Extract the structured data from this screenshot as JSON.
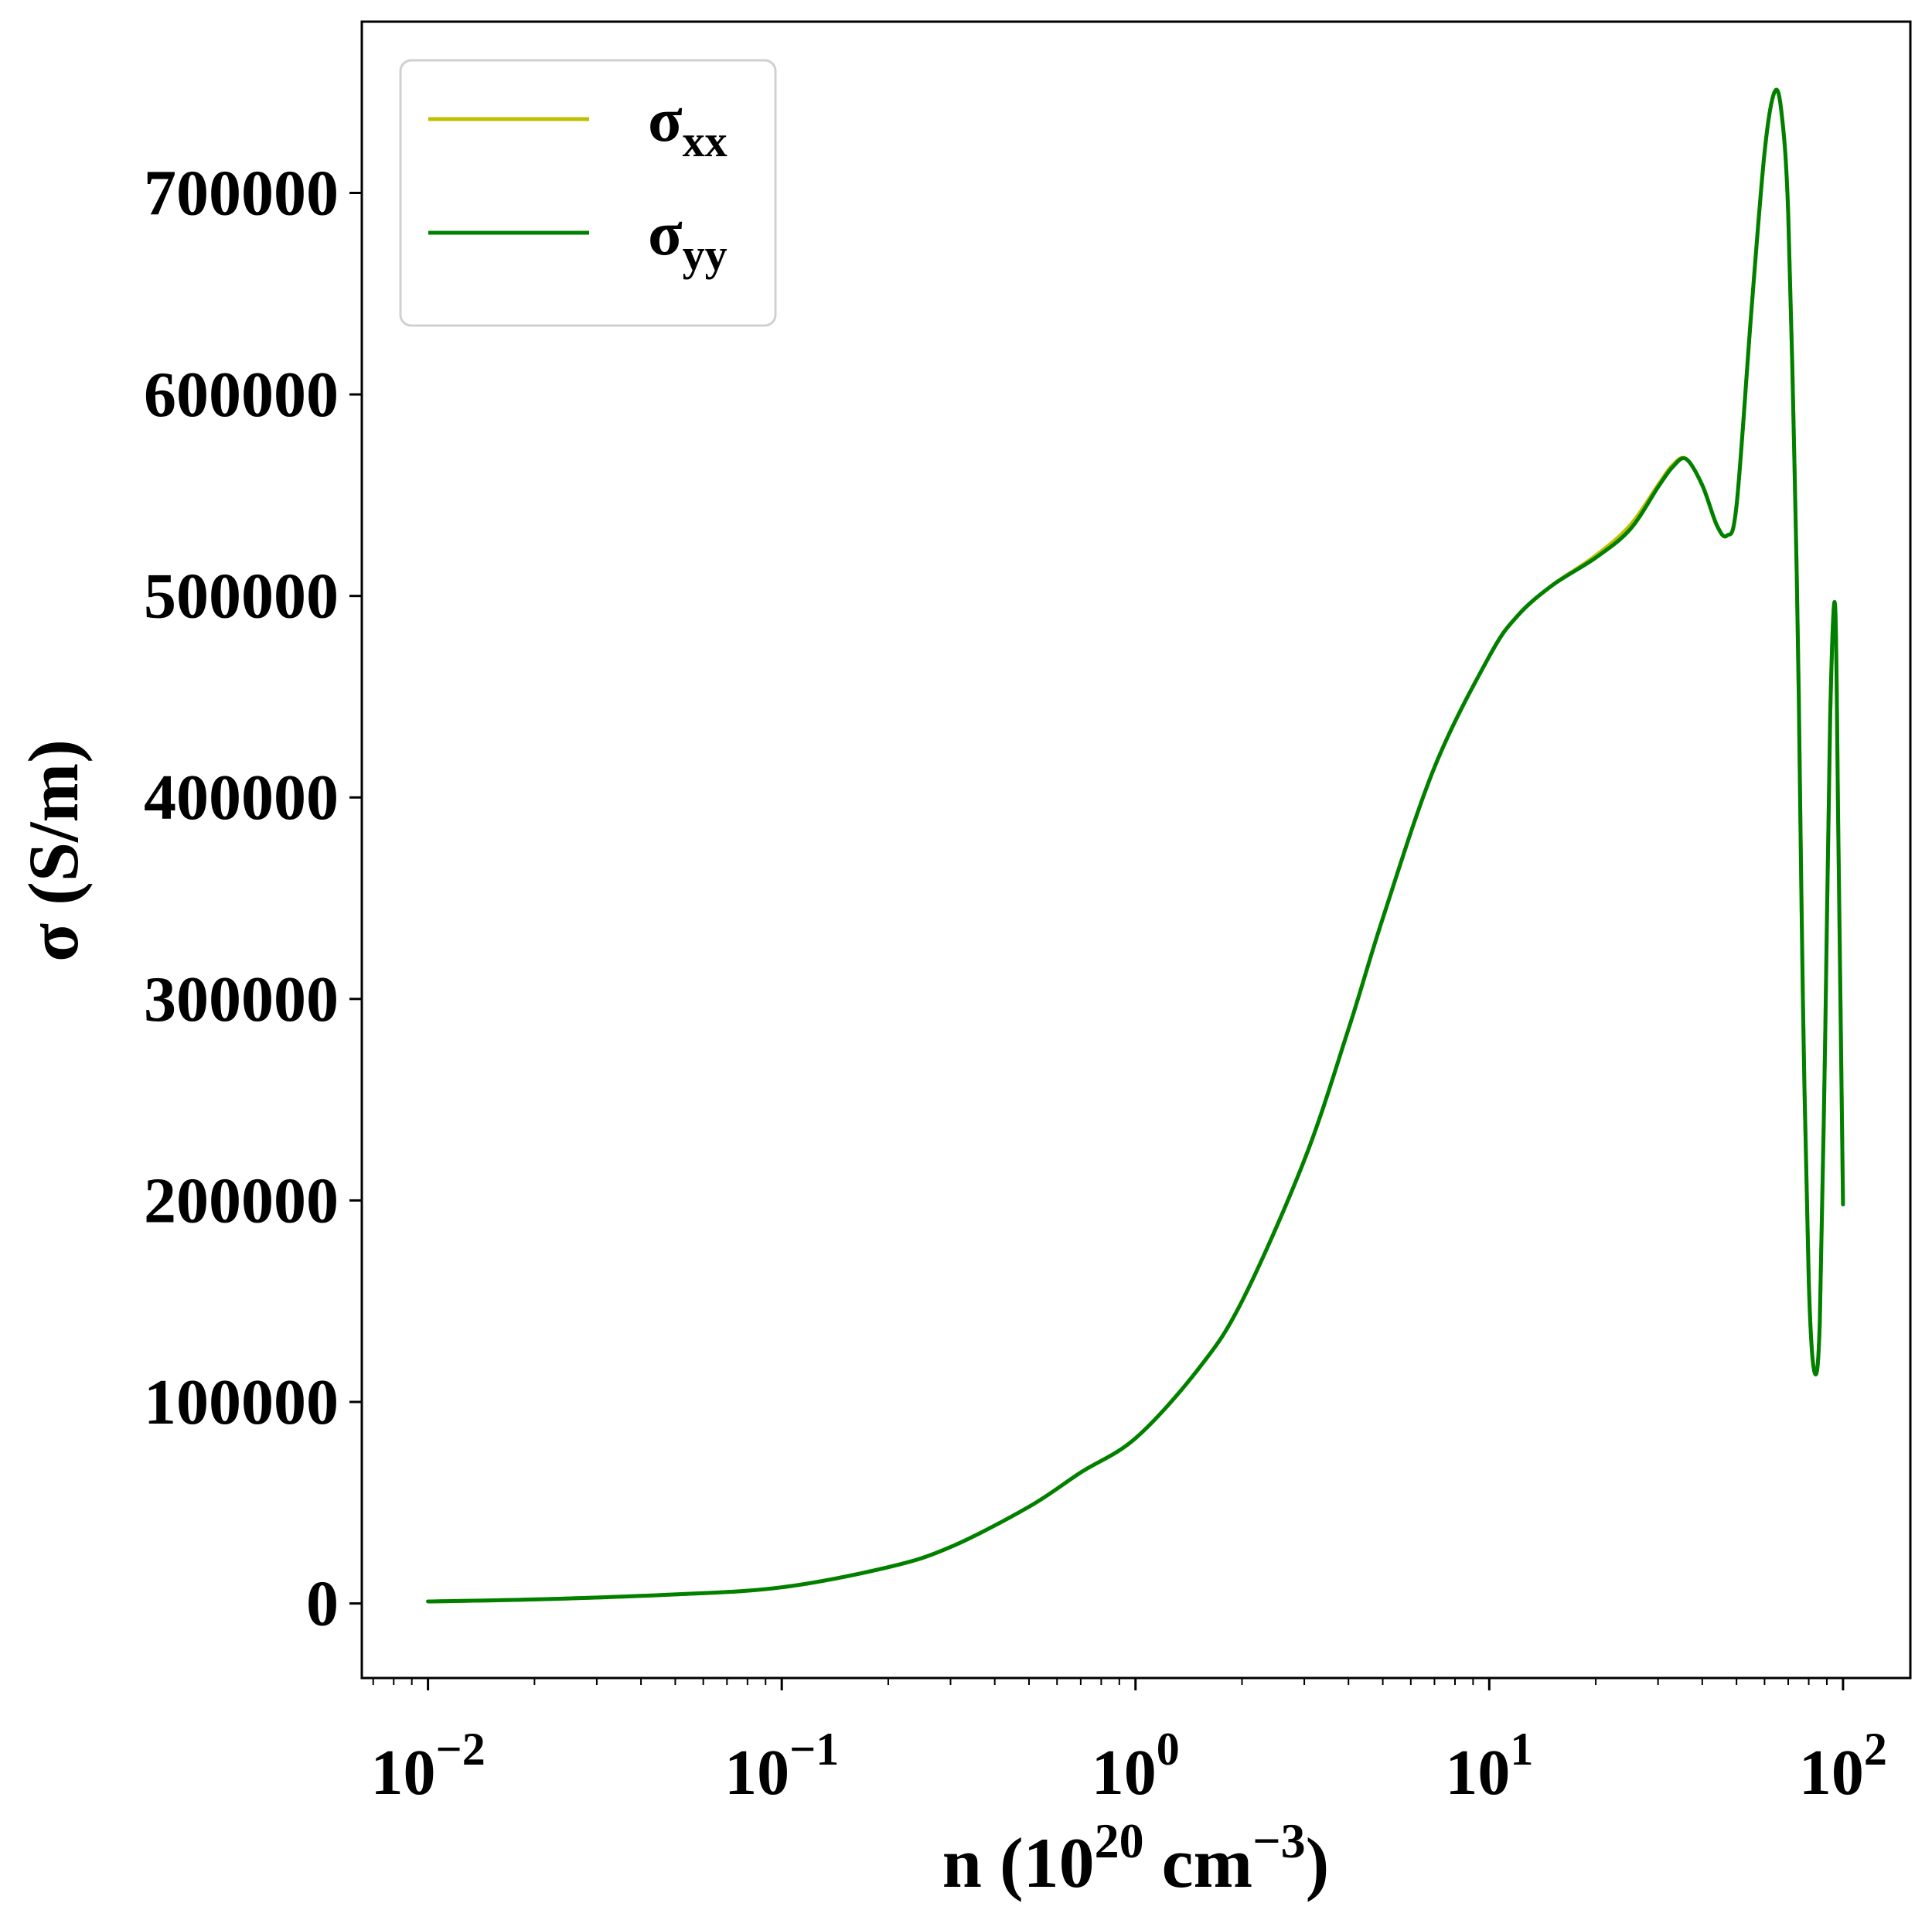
{
  "chart_data": {
    "type": "line",
    "xscale": "log",
    "xlim": [
      0.0065,
      155
    ],
    "ylim": [
      -37000,
      785000
    ],
    "grid": false,
    "legend_position": "top-left",
    "xlabel": "n (10^20 cm^-3)",
    "xlabel_parts": {
      "main": "n (10",
      "sup1": "20",
      "mid": " cm",
      "sup2": "−3",
      "end": ")"
    },
    "ylabel": "σ (S/m)",
    "x_ticks": [
      {
        "value": 0.01,
        "base": "10",
        "exp": "−2"
      },
      {
        "value": 0.1,
        "base": "10",
        "exp": "−1"
      },
      {
        "value": 1,
        "base": "10",
        "exp": "0"
      },
      {
        "value": 10,
        "base": "10",
        "exp": "1"
      },
      {
        "value": 100,
        "base": "10",
        "exp": "2"
      }
    ],
    "y_ticks": [
      {
        "value": 0,
        "label": "0"
      },
      {
        "value": 100000,
        "label": "100000"
      },
      {
        "value": 200000,
        "label": "200000"
      },
      {
        "value": 300000,
        "label": "300000"
      },
      {
        "value": 400000,
        "label": "400000"
      },
      {
        "value": 500000,
        "label": "500000"
      },
      {
        "value": 600000,
        "label": "600000"
      },
      {
        "value": 700000,
        "label": "700000"
      }
    ],
    "series": [
      {
        "name": "σxx",
        "name_parts": {
          "main": "σ",
          "sub": "xx"
        },
        "color": "#bfbf00",
        "x": [
          0.01,
          0.02,
          0.05,
          0.1,
          0.2,
          0.3,
          0.5,
          0.7,
          1.0,
          1.5,
          2.0,
          3.0,
          4.0,
          5.0,
          7.0,
          10.0,
          12.0,
          15.0,
          20.0,
          25.0,
          30.0,
          33.0,
          36.0,
          40.0,
          44.0,
          47.0,
          50.0,
          55.0,
          60.0,
          64.0,
          67.0,
          70.0,
          73.0,
          75.0,
          77.0,
          80.0,
          83.0,
          86.0,
          89.0,
          92.0,
          95.0,
          97.0,
          100.0
        ],
        "y": [
          1000,
          2000,
          4500,
          8000,
          18000,
          28000,
          48000,
          65000,
          82000,
          116000,
          150000,
          220000,
          285000,
          340000,
          415000,
          470000,
          490000,
          505000,
          520000,
          535000,
          555000,
          565000,
          568000,
          555000,
          535000,
          530000,
          545000,
          640000,
          720000,
          750000,
          740000,
          690000,
          560000,
          450000,
          300000,
          160000,
          115000,
          140000,
          280000,
          440000,
          495000,
          380000,
          198000
        ]
      },
      {
        "name": "σyy",
        "name_parts": {
          "main": "σ",
          "sub": "yy"
        },
        "color": "#008000",
        "x": [
          0.01,
          0.02,
          0.05,
          0.1,
          0.2,
          0.3,
          0.5,
          0.7,
          1.0,
          1.5,
          2.0,
          3.0,
          4.0,
          5.0,
          7.0,
          10.0,
          12.0,
          15.0,
          20.0,
          25.0,
          30.0,
          33.0,
          36.0,
          40.0,
          44.0,
          47.0,
          50.0,
          55.0,
          60.0,
          64.0,
          67.0,
          70.0,
          73.0,
          75.0,
          77.0,
          80.0,
          83.0,
          86.0,
          89.0,
          92.0,
          95.0,
          97.0,
          100.0
        ],
        "y": [
          1000,
          2000,
          4500,
          8000,
          18000,
          28000,
          48000,
          65000,
          82000,
          116000,
          150000,
          220000,
          285000,
          340000,
          415000,
          470000,
          490000,
          505000,
          519000,
          533000,
          554000,
          564000,
          568000,
          555000,
          535000,
          530000,
          545000,
          640000,
          720000,
          750000,
          740000,
          690000,
          560000,
          450000,
          300000,
          160000,
          115000,
          140000,
          280000,
          440000,
          495000,
          380000,
          198000
        ]
      }
    ]
  }
}
